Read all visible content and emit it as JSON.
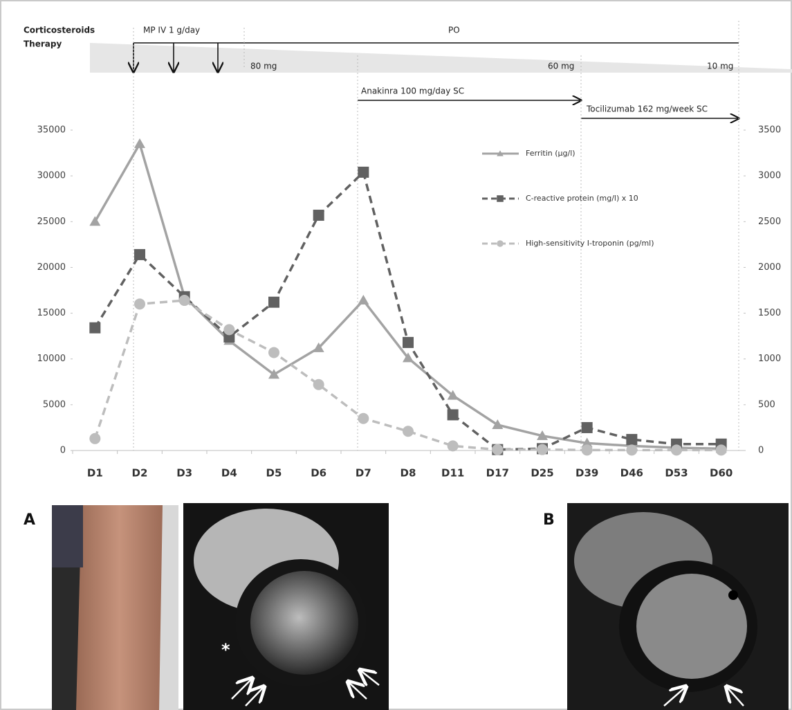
{
  "chart_data": {
    "type": "line",
    "annotations": [
      "Corticosteroids",
      "Therapy",
      "MP IV 1 g/day",
      "PO",
      "80 mg",
      "60 mg",
      "10 mg",
      "Anakinra 100 mg/day SC",
      "Tocilizumab 162 mg/week SC"
    ],
    "categories": [
      "D1",
      "D2",
      "D3",
      "D4",
      "D5",
      "D6",
      "D7",
      "D8",
      "D11",
      "D17",
      "D25",
      "D39",
      "D46",
      "D53",
      "D60"
    ],
    "series": [
      {
        "name": "Ferritin (µg/l)",
        "color": "#a3a3a3",
        "marker": "triangle",
        "dashed": false,
        "values": [
          25000,
          33500,
          16800,
          12000,
          8300,
          11200,
          16400,
          10100,
          6000,
          2800,
          1600,
          800,
          500,
          300,
          200
        ]
      },
      {
        "name": "C-reactive protein (mg/l) x 10",
        "color": "#616161",
        "marker": "square",
        "dashed": true,
        "axis": "y2",
        "values": [
          1340,
          2140,
          1680,
          1240,
          1620,
          2570,
          3040,
          1180,
          390,
          10,
          20,
          250,
          120,
          70,
          70
        ]
      },
      {
        "name": "High-sensitivity I-troponin (pg/ml)",
        "color": "#bdbdbd",
        "marker": "circle",
        "dashed": true,
        "axis": "y2",
        "values": [
          130,
          1600,
          1640,
          1320,
          1070,
          720,
          350,
          210,
          50,
          10,
          10,
          5,
          5,
          5,
          5
        ]
      }
    ],
    "ylim": [
      0,
      35000
    ],
    "yticks": [
      0,
      5000,
      10000,
      15000,
      20000,
      25000,
      30000,
      35000
    ],
    "y2lim": [
      0,
      3500
    ],
    "y2ticks": [
      0,
      500,
      1000,
      1500,
      2000,
      2500,
      3000,
      3500
    ]
  },
  "figure_labels": [
    "A",
    "B"
  ],
  "asterisk": "*"
}
